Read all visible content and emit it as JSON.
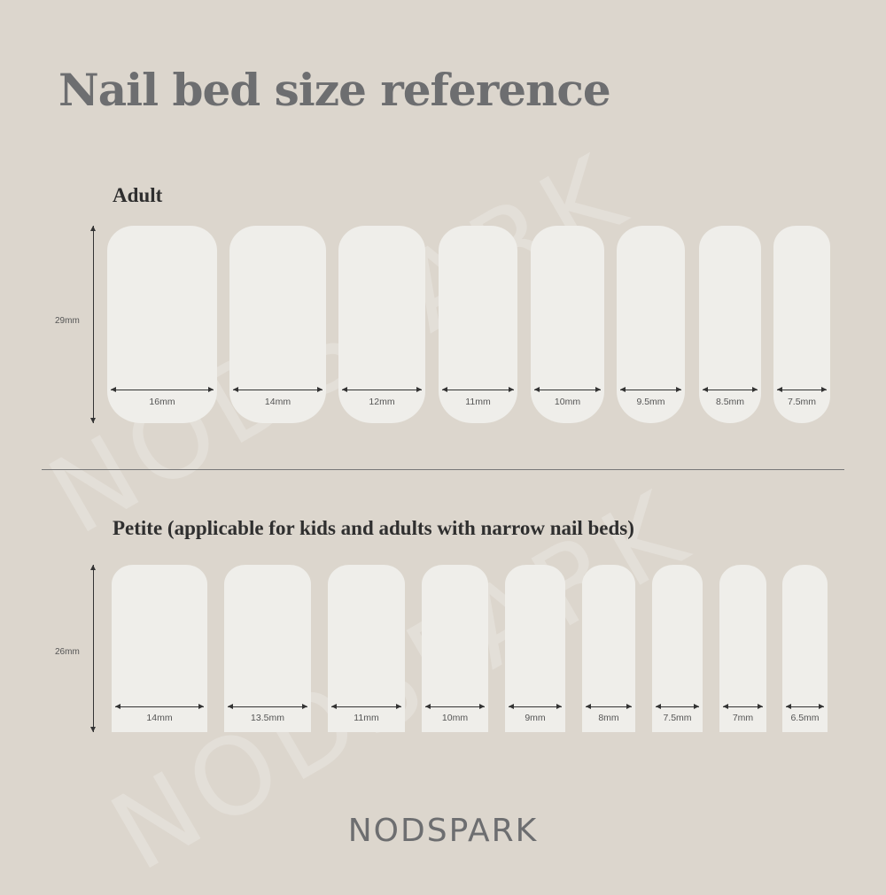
{
  "title": "Nail bed size reference",
  "watermark": "NODSPARK",
  "adult": {
    "heading": "Adult",
    "length": "29mm",
    "widths": [
      "16mm",
      "14mm",
      "12mm",
      "11mm",
      "10mm",
      "9.5mm",
      "8.5mm",
      "7.5mm"
    ]
  },
  "petite": {
    "heading": "Petite (applicable for kids and adults with narrow nail beds)",
    "length": "26mm",
    "widths": [
      "14mm",
      "13.5mm",
      "11mm",
      "10mm",
      "9mm",
      "8mm",
      "7.5mm",
      "7mm",
      "6.5mm"
    ]
  },
  "brand": "NODSPARK",
  "colors": {
    "background": "#dcd6cd",
    "nail": "#efeeea",
    "title": "#6d6e70"
  }
}
